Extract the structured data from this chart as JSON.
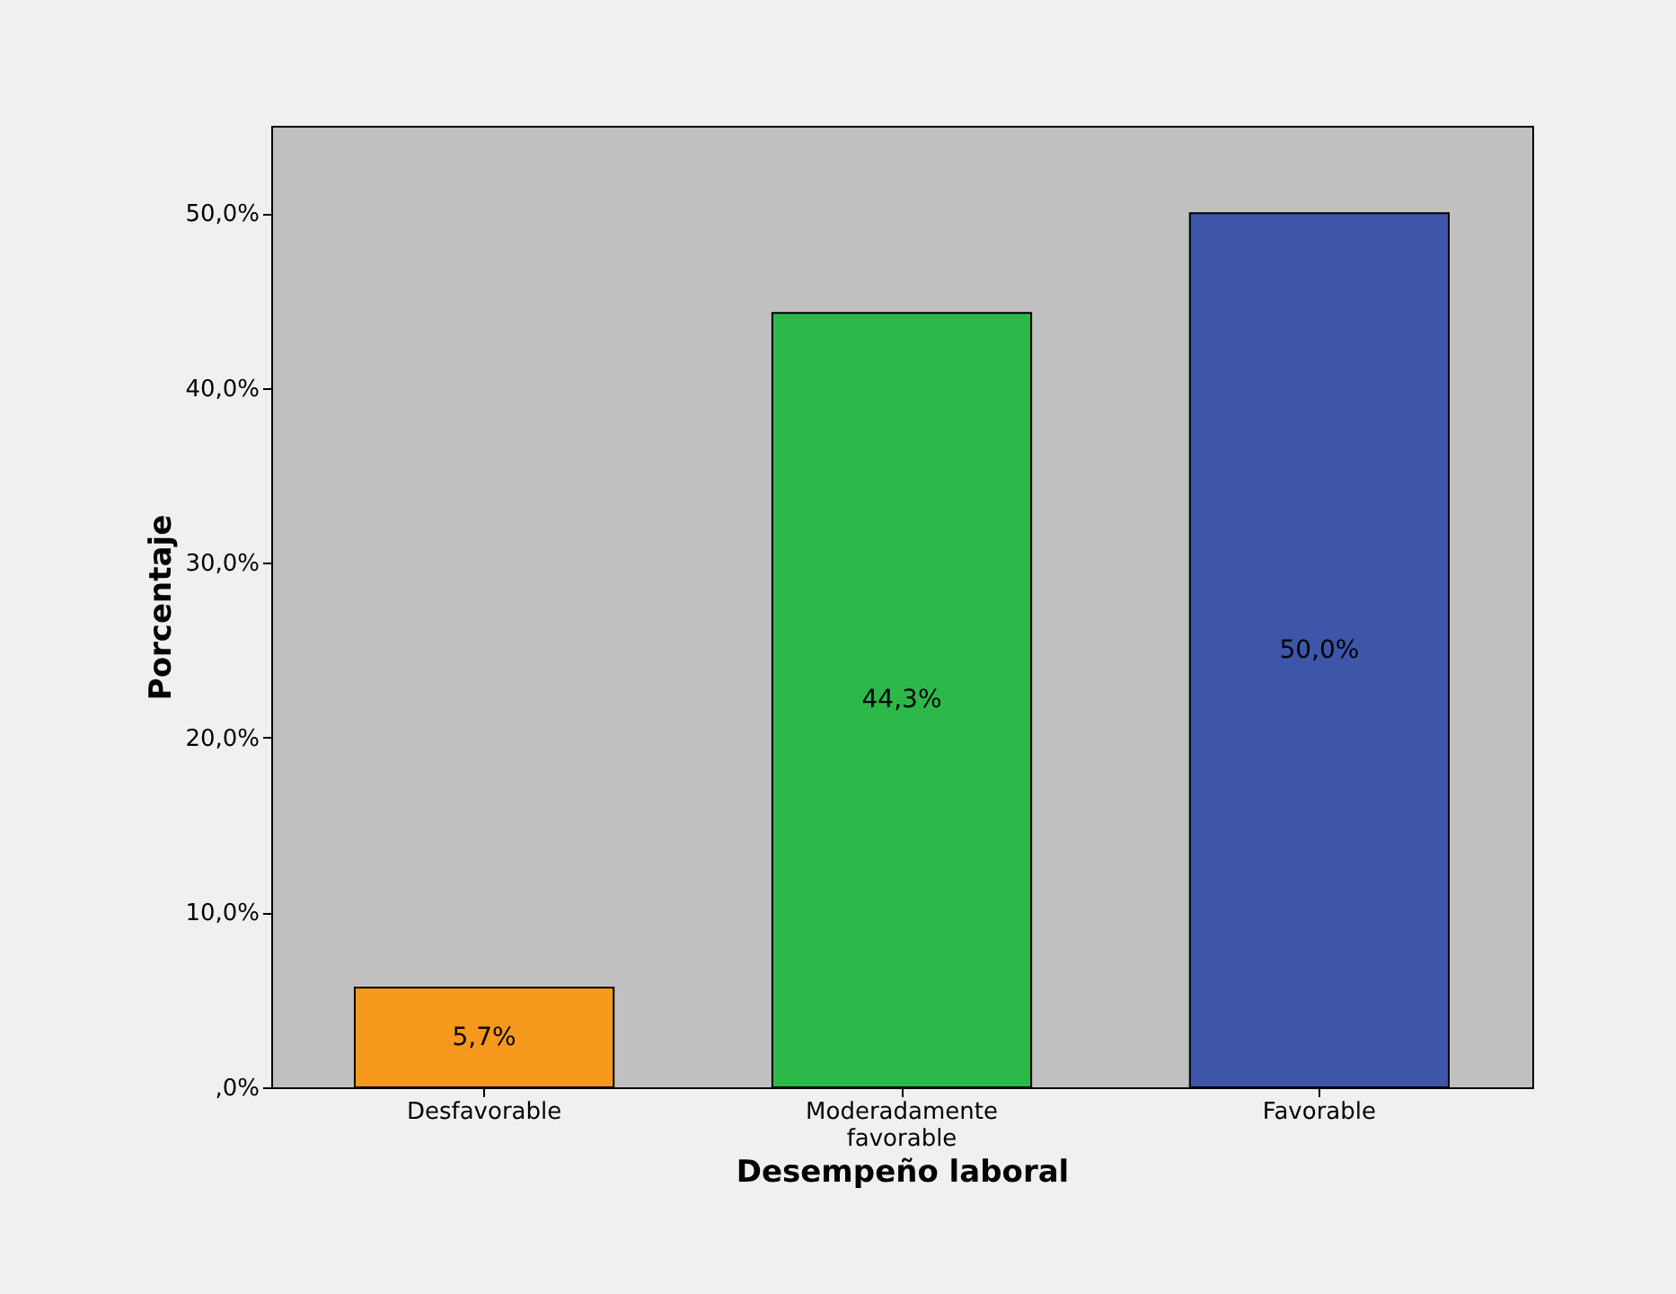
{
  "chart_data": {
    "type": "bar",
    "xlabel": "Desempeño laboral",
    "ylabel": "Porcentaje",
    "categories": [
      "Desfavorable",
      "Moderadamente favorable",
      "Favorable"
    ],
    "values": [
      5.7,
      44.3,
      50.0
    ],
    "colors": [
      "#f7991c",
      "#2db84a",
      "#3d56aa"
    ],
    "value_labels": [
      "5,7%",
      "44,3%",
      "50,0%"
    ],
    "ylim": [
      0,
      55
    ],
    "yticks": [
      {
        "value": 0,
        "label": ",0%"
      },
      {
        "value": 10,
        "label": "10,0%"
      },
      {
        "value": 20,
        "label": "20,0%"
      },
      {
        "value": 30,
        "label": "30,0%"
      },
      {
        "value": 40,
        "label": "40,0%"
      },
      {
        "value": 50,
        "label": "50,0%"
      }
    ],
    "grid": false
  }
}
